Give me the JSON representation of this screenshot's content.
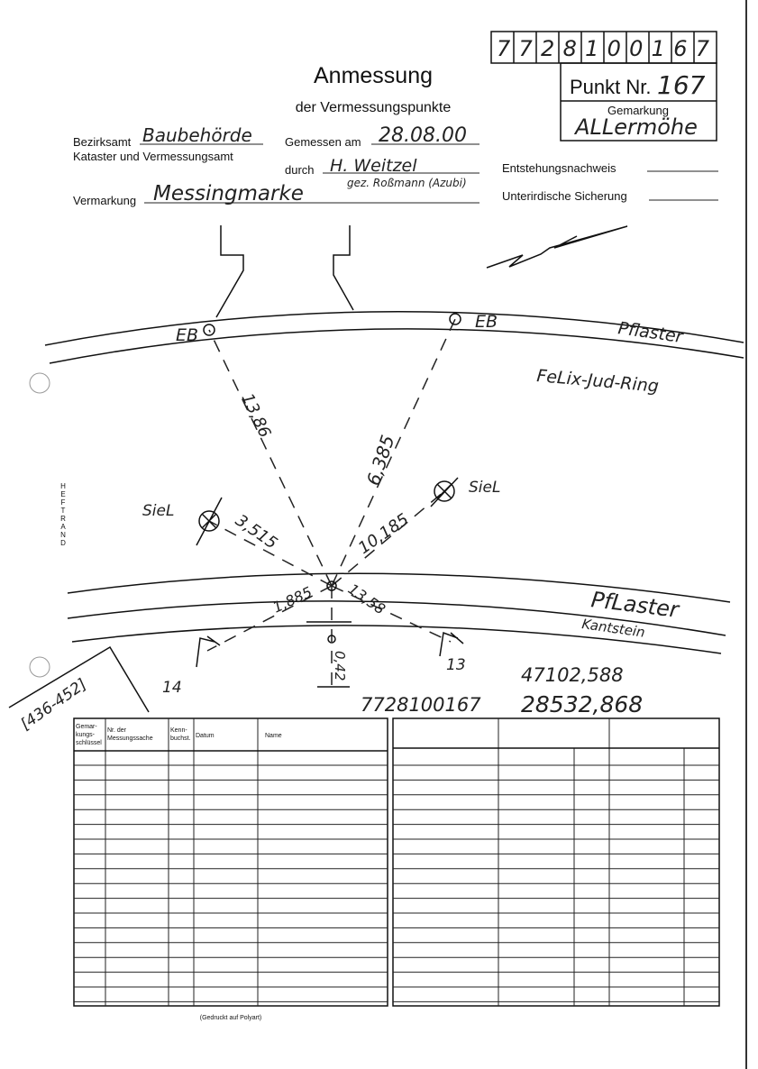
{
  "header": {
    "point_number": "7728100167",
    "punkt_nr_label": "Punkt Nr.",
    "punkt_nr": "167",
    "gemarkung_label": "Gemarkung",
    "gemarkung": "ALLermöhe",
    "title": "Anmessung",
    "subtitle": "der Vermessungspunkte"
  },
  "form": {
    "bezirksamt_label": "Bezirksamt",
    "bezirksamt": "Baubehörde",
    "kataster": "Kataster und Vermessungsamt",
    "gemessen_label": "Gemessen am",
    "gemessen": "28.08.00",
    "durch_label": "durch",
    "durch": "H. Weitzel",
    "durch_note": "gez. Roßmann (Azubi)",
    "entstehung_label": "Entstehungsnachweis",
    "sicherung_label": "Unterirdische Sicherung",
    "vermarkung_label": "Vermarkung",
    "vermarkung": "Messingmarke",
    "heftrand": "HEFTRAND"
  },
  "sketch": {
    "eb_left": "EB",
    "eb_right": "EB",
    "pflaster_top": "Pflaster",
    "street": "FeLix-Jud-Ring",
    "siel_left": "SieL",
    "siel_right": "SieL",
    "dist_eb_left": "13,86",
    "dist_eb_right": "6,385",
    "dist_siel_left": "3,515",
    "dist_siel_right": "10,185",
    "dist_lamp_left": "1,885",
    "dist_lamp_right": "13,58",
    "pflaster_bottom": "PfLaster",
    "kantstein": "Kantstein",
    "lamp_left": "14",
    "lamp_right": "13",
    "dist_down": "0,42",
    "house_numbers": "[436-452]",
    "point_id": "7728100167",
    "coord_1": "47102,588",
    "coord_2": "28532,868"
  },
  "table": {
    "headers": [
      [
        "Gemar-",
        "kungs-",
        "schlüssel"
      ],
      [
        "Nr. der",
        "Messungssache"
      ],
      [
        "Kenn-",
        "buchst."
      ],
      [
        "Datum"
      ],
      [
        "Name"
      ]
    ],
    "footnote": "(Gedruckt auf Polyart)"
  }
}
